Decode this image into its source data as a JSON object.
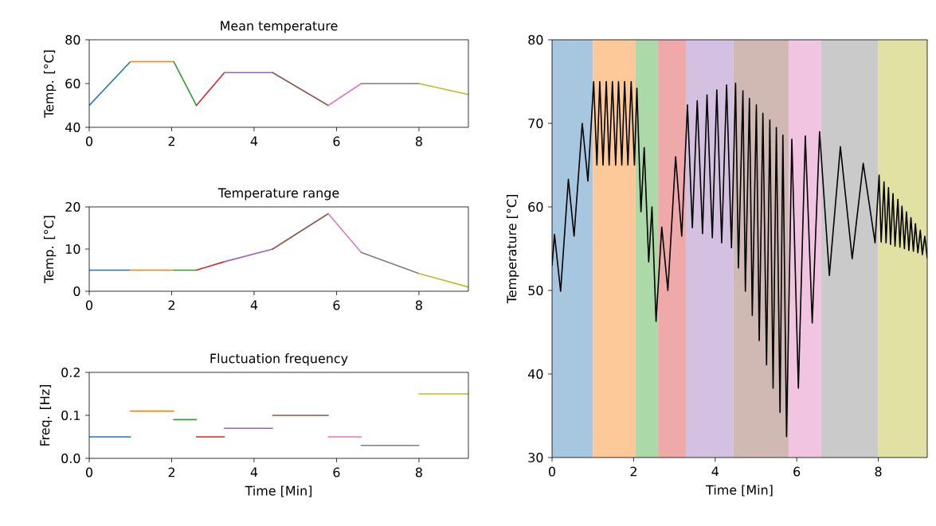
{
  "chart_data": [
    {
      "type": "line",
      "title": "Mean temperature",
      "ylabel": "Temp. [°C]",
      "xlim": [
        0,
        9.2
      ],
      "ylim": [
        40,
        80
      ],
      "xticks": [
        0,
        2,
        4,
        6,
        8
      ],
      "yticks": [
        40,
        60,
        80
      ],
      "series": [
        {
          "color": "#1f77b4",
          "x": [
            0,
            1.0
          ],
          "values": [
            50,
            70
          ]
        },
        {
          "color": "#ff7f0e",
          "x": [
            1.0,
            2.05
          ],
          "values": [
            70,
            70
          ]
        },
        {
          "color": "#2ca02c",
          "x": [
            2.05,
            2.6
          ],
          "values": [
            70,
            50
          ]
        },
        {
          "color": "#d62728",
          "x": [
            2.6,
            3.28
          ],
          "values": [
            50,
            65
          ]
        },
        {
          "color": "#9467bd",
          "x": [
            3.28,
            4.45
          ],
          "values": [
            65,
            65
          ]
        },
        {
          "color": "#8c564b",
          "x": [
            4.45,
            5.8
          ],
          "values": [
            65,
            50
          ]
        },
        {
          "color": "#e377c2",
          "x": [
            5.8,
            6.6
          ],
          "values": [
            50,
            60
          ]
        },
        {
          "color": "#7f7f7f",
          "x": [
            6.6,
            8.0
          ],
          "values": [
            60,
            60
          ]
        },
        {
          "color": "#bcbd22",
          "x": [
            8.0,
            9.2
          ],
          "values": [
            60,
            55
          ]
        }
      ]
    },
    {
      "type": "line",
      "title": "Temperature range",
      "ylabel": "Temp. [°C]",
      "xlim": [
        0,
        9.2
      ],
      "ylim": [
        0,
        20
      ],
      "xticks": [
        0,
        2,
        4,
        6,
        8
      ],
      "yticks": [
        0,
        10,
        20
      ],
      "series": [
        {
          "color": "#1f77b4",
          "x": [
            0,
            1.0
          ],
          "values": [
            5,
            5
          ]
        },
        {
          "color": "#ff7f0e",
          "x": [
            1.0,
            2.05
          ],
          "values": [
            5,
            5
          ]
        },
        {
          "color": "#2ca02c",
          "x": [
            2.05,
            2.6
          ],
          "values": [
            5,
            5
          ]
        },
        {
          "color": "#d62728",
          "x": [
            2.6,
            3.28
          ],
          "values": [
            5,
            7
          ]
        },
        {
          "color": "#9467bd",
          "x": [
            3.28,
            4.45
          ],
          "values": [
            7,
            10
          ]
        },
        {
          "color": "#8c564b",
          "x": [
            4.45,
            5.8
          ],
          "values": [
            10,
            18.4
          ]
        },
        {
          "color": "#e377c2",
          "x": [
            5.8,
            6.6
          ],
          "values": [
            18.4,
            9.2
          ]
        },
        {
          "color": "#7f7f7f",
          "x": [
            6.6,
            8.0
          ],
          "values": [
            9.2,
            4.2
          ]
        },
        {
          "color": "#bcbd22",
          "x": [
            8.0,
            9.2
          ],
          "values": [
            4.2,
            1
          ]
        }
      ]
    },
    {
      "type": "line",
      "title": "Fluctuation frequency",
      "xlabel": "Time [Min]",
      "ylabel": "Freq. [Hz]",
      "xlim": [
        0,
        9.2
      ],
      "ylim": [
        0,
        0.2
      ],
      "xticks": [
        0,
        2,
        4,
        6,
        8
      ],
      "yticks": [
        {
          "value": 0,
          "label": "0.0"
        },
        0.1,
        0.2
      ],
      "series": [
        {
          "color": "#1f77b4",
          "x": [
            0,
            1.0
          ],
          "values": [
            0.05,
            0.05
          ]
        },
        {
          "color": "#ff7f0e",
          "x": [
            1.0,
            2.05
          ],
          "values": [
            0.11,
            0.11
          ]
        },
        {
          "color": "#2ca02c",
          "x": [
            2.05,
            2.6
          ],
          "values": [
            0.09,
            0.09
          ]
        },
        {
          "color": "#d62728",
          "x": [
            2.6,
            3.28
          ],
          "values": [
            0.05,
            0.05
          ]
        },
        {
          "color": "#9467bd",
          "x": [
            3.28,
            4.45
          ],
          "values": [
            0.07,
            0.07
          ]
        },
        {
          "color": "#8c564b",
          "x": [
            4.45,
            5.8
          ],
          "values": [
            0.1,
            0.1
          ]
        },
        {
          "color": "#e377c2",
          "x": [
            5.8,
            6.6
          ],
          "values": [
            0.05,
            0.05
          ]
        },
        {
          "color": "#7f7f7f",
          "x": [
            6.6,
            8.0
          ],
          "values": [
            0.03,
            0.03
          ]
        },
        {
          "color": "#bcbd22",
          "x": [
            8.0,
            9.2
          ],
          "values": [
            0.15,
            0.15
          ]
        }
      ]
    },
    {
      "type": "line",
      "xlabel": "Time [Min]",
      "ylabel": "Temperature [°C]",
      "xlim": [
        0,
        9.2
      ],
      "ylim": [
        30,
        80
      ],
      "xticks": [
        0,
        2,
        4,
        6,
        8
      ],
      "yticks": [
        30,
        40,
        50,
        60,
        70,
        80
      ],
      "bands": [
        {
          "axis": "x",
          "from": 0,
          "to": 1.0,
          "color": "#a7c6df"
        },
        {
          "axis": "x",
          "from": 1.0,
          "to": 2.05,
          "color": "#fdc999"
        },
        {
          "axis": "x",
          "from": 2.05,
          "to": 2.6,
          "color": "#abd9a7"
        },
        {
          "axis": "x",
          "from": 2.6,
          "to": 3.28,
          "color": "#eea9a8"
        },
        {
          "axis": "x",
          "from": 3.28,
          "to": 4.45,
          "color": "#d4c0e0"
        },
        {
          "axis": "x",
          "from": 4.45,
          "to": 5.8,
          "color": "#d0b9b3"
        },
        {
          "axis": "x",
          "from": 5.8,
          "to": 6.6,
          "color": "#f1c4e2"
        },
        {
          "axis": "x",
          "from": 6.6,
          "to": 8.0,
          "color": "#cacaca"
        },
        {
          "axis": "x",
          "from": 8.0,
          "to": 9.2,
          "color": "#e2e1a4"
        }
      ],
      "series": [
        {
          "color": "#000000",
          "x": [
            0,
            0.06,
            0.21,
            0.4,
            0.54,
            0.74,
            0.88,
            1.02,
            1.1,
            1.17,
            1.25,
            1.33,
            1.4,
            1.48,
            1.56,
            1.63,
            1.71,
            1.78,
            1.86,
            1.94,
            2.02,
            2.08,
            2.18,
            2.26,
            2.37,
            2.45,
            2.55,
            2.69,
            2.84,
            3.03,
            3.18,
            3.32,
            3.44,
            3.56,
            3.69,
            3.8,
            3.93,
            4.04,
            4.16,
            4.28,
            4.4,
            4.5,
            4.57,
            4.68,
            4.74,
            4.84,
            4.91,
            5.01,
            5.08,
            5.17,
            5.26,
            5.34,
            5.42,
            5.5,
            5.59,
            5.66,
            5.75,
            5.88,
            6.04,
            6.21,
            6.38,
            6.56,
            6.8,
            7.07,
            7.36,
            7.63,
            7.92,
            8.02,
            8.07,
            8.14,
            8.19,
            8.25,
            8.3,
            8.36,
            8.41,
            8.48,
            8.53,
            8.58,
            8.64,
            8.69,
            8.75,
            8.8,
            8.86,
            8.91,
            8.97,
            9.03,
            9.08,
            9.14,
            9.2
          ],
          "values": [
            53,
            56.7,
            49.9,
            63.3,
            56.5,
            70.0,
            63.1,
            75,
            65,
            75,
            65,
            75,
            65,
            75,
            65,
            75,
            65,
            75,
            65,
            75,
            65,
            74.2,
            59.4,
            67.1,
            53.4,
            60.0,
            46.3,
            57.6,
            50.0,
            66.0,
            56.5,
            72.2,
            57.5,
            72.7,
            56.8,
            73.4,
            56.3,
            74.0,
            55.7,
            74.6,
            55.1,
            74.8,
            52.7,
            73.9,
            49.9,
            73.0,
            47.0,
            72.2,
            44.0,
            71.2,
            41.1,
            70.4,
            38.3,
            69.5,
            35.4,
            68.6,
            32.5,
            68.1,
            38.3,
            68.5,
            46.1,
            69.0,
            51.8,
            67.2,
            53.8,
            65.2,
            55.7,
            63.8,
            55.8,
            63.0,
            55.7,
            62.3,
            55.5,
            61.6,
            55.3,
            60.9,
            55.2,
            60.1,
            55.0,
            59.4,
            54.8,
            58.7,
            54.7,
            58.0,
            54.5,
            57.2,
            54.3,
            56.5,
            53.9
          ]
        }
      ]
    }
  ]
}
